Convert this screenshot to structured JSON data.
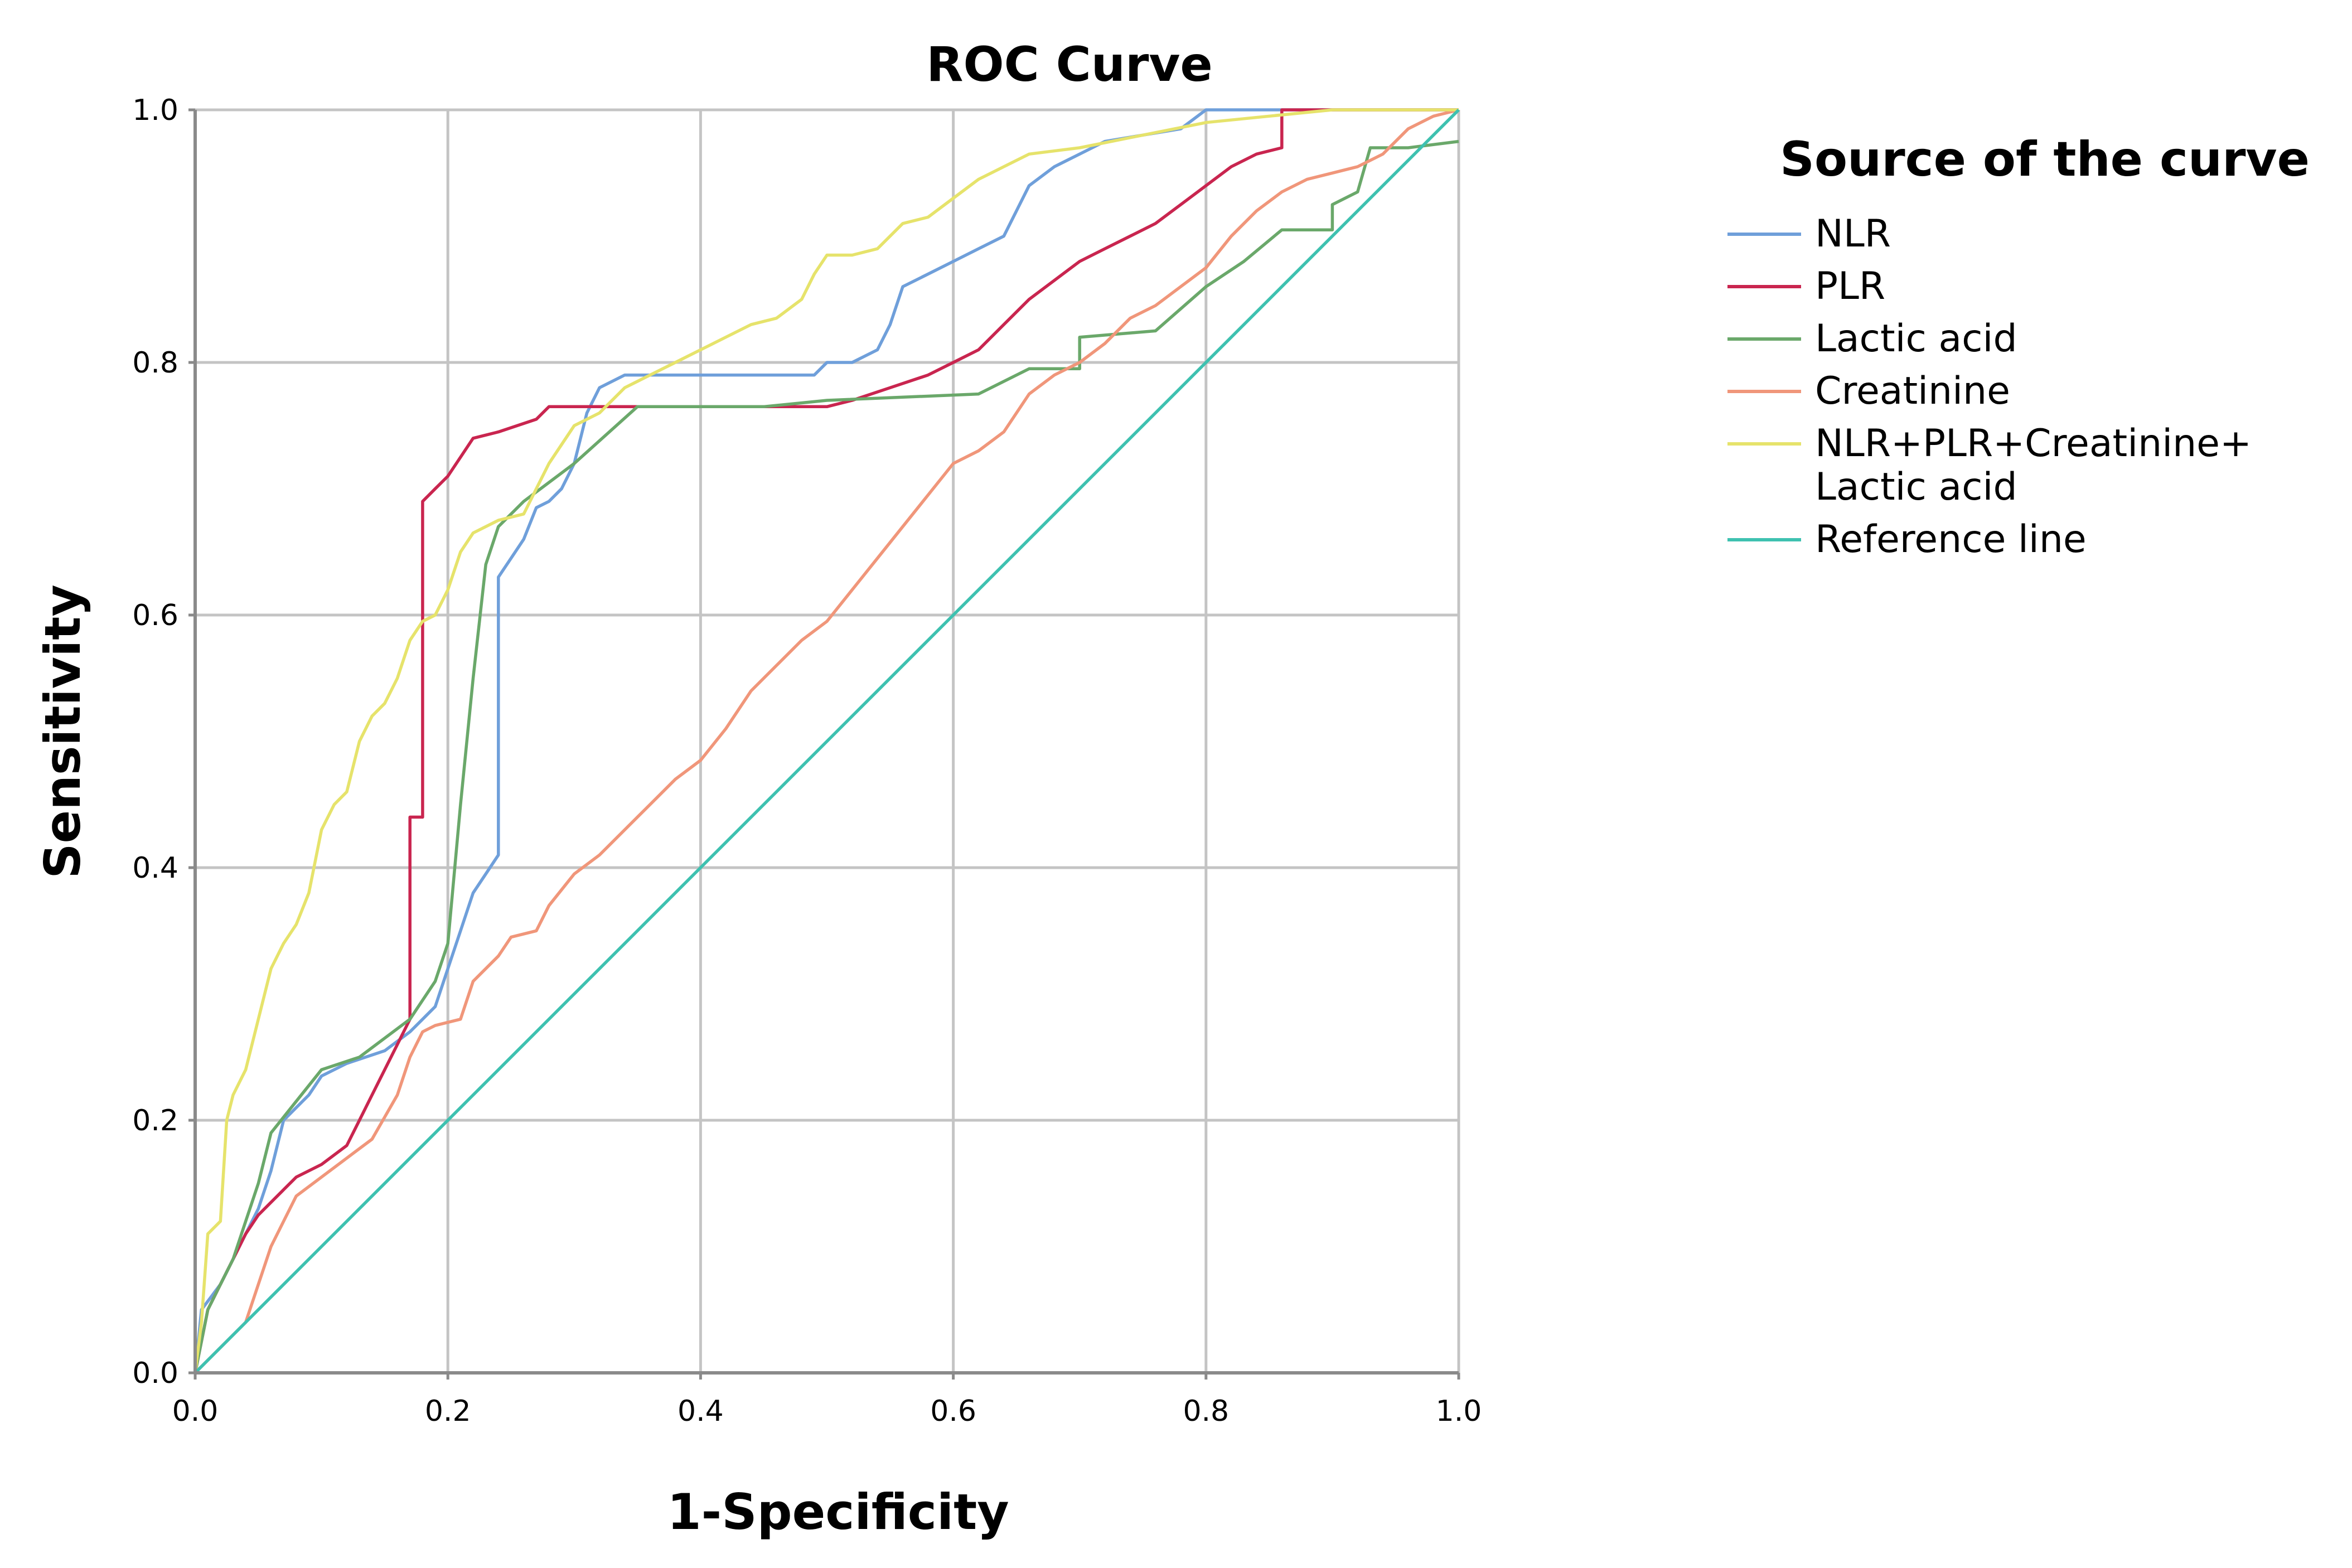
{
  "chart_data": {
    "type": "line",
    "title": "ROC Curve",
    "xlabel": "1-Specificity",
    "ylabel": "Sensitivity",
    "xlim": [
      0,
      1
    ],
    "ylim": [
      0,
      1
    ],
    "x_ticks": [
      "0.0",
      "0.2",
      "0.4",
      "0.6",
      "0.8",
      "1.0"
    ],
    "y_ticks": [
      "0.0",
      "0.2",
      "0.4",
      "0.6",
      "0.8",
      "1.0"
    ],
    "grid": true,
    "legend_title": "Source of the curve",
    "legend_position": "right",
    "series": [
      {
        "name": "NLR",
        "color": "#6f9fda",
        "points": [
          [
            0,
            0
          ],
          [
            0.005,
            0.05
          ],
          [
            0.02,
            0.07
          ],
          [
            0.03,
            0.09
          ],
          [
            0.04,
            0.11
          ],
          [
            0.05,
            0.13
          ],
          [
            0.06,
            0.16
          ],
          [
            0.07,
            0.2
          ],
          [
            0.08,
            0.21
          ],
          [
            0.09,
            0.22
          ],
          [
            0.1,
            0.235
          ],
          [
            0.12,
            0.245
          ],
          [
            0.15,
            0.255
          ],
          [
            0.17,
            0.27
          ],
          [
            0.18,
            0.28
          ],
          [
            0.19,
            0.29
          ],
          [
            0.2,
            0.32
          ],
          [
            0.21,
            0.35
          ],
          [
            0.22,
            0.38
          ],
          [
            0.23,
            0.395
          ],
          [
            0.24,
            0.41
          ],
          [
            0.24,
            0.63
          ],
          [
            0.25,
            0.645
          ],
          [
            0.26,
            0.66
          ],
          [
            0.27,
            0.685
          ],
          [
            0.28,
            0.69
          ],
          [
            0.29,
            0.7
          ],
          [
            0.3,
            0.72
          ],
          [
            0.31,
            0.76
          ],
          [
            0.32,
            0.78
          ],
          [
            0.34,
            0.79
          ],
          [
            0.45,
            0.79
          ],
          [
            0.49,
            0.79
          ],
          [
            0.5,
            0.8
          ],
          [
            0.52,
            0.8
          ],
          [
            0.54,
            0.81
          ],
          [
            0.55,
            0.83
          ],
          [
            0.56,
            0.86
          ],
          [
            0.58,
            0.87
          ],
          [
            0.6,
            0.88
          ],
          [
            0.62,
            0.89
          ],
          [
            0.64,
            0.9
          ],
          [
            0.65,
            0.92
          ],
          [
            0.66,
            0.94
          ],
          [
            0.68,
            0.955
          ],
          [
            0.7,
            0.965
          ],
          [
            0.72,
            0.975
          ],
          [
            0.75,
            0.98
          ],
          [
            0.78,
            0.985
          ],
          [
            0.8,
            1.0
          ],
          [
            1.0,
            1.0
          ]
        ]
      },
      {
        "name": "PLR",
        "color": "#c9254f",
        "points": [
          [
            0,
            0
          ],
          [
            0.01,
            0.05
          ],
          [
            0.02,
            0.07
          ],
          [
            0.03,
            0.09
          ],
          [
            0.04,
            0.11
          ],
          [
            0.05,
            0.125
          ],
          [
            0.06,
            0.135
          ],
          [
            0.07,
            0.145
          ],
          [
            0.08,
            0.155
          ],
          [
            0.1,
            0.165
          ],
          [
            0.12,
            0.18
          ],
          [
            0.13,
            0.2
          ],
          [
            0.14,
            0.22
          ],
          [
            0.15,
            0.24
          ],
          [
            0.16,
            0.26
          ],
          [
            0.17,
            0.28
          ],
          [
            0.17,
            0.44
          ],
          [
            0.18,
            0.44
          ],
          [
            0.18,
            0.69
          ],
          [
            0.19,
            0.7
          ],
          [
            0.2,
            0.71
          ],
          [
            0.21,
            0.725
          ],
          [
            0.22,
            0.74
          ],
          [
            0.24,
            0.745
          ],
          [
            0.27,
            0.755
          ],
          [
            0.28,
            0.765
          ],
          [
            0.35,
            0.765
          ],
          [
            0.5,
            0.765
          ],
          [
            0.52,
            0.77
          ],
          [
            0.55,
            0.78
          ],
          [
            0.58,
            0.79
          ],
          [
            0.6,
            0.8
          ],
          [
            0.62,
            0.81
          ],
          [
            0.64,
            0.83
          ],
          [
            0.66,
            0.85
          ],
          [
            0.68,
            0.865
          ],
          [
            0.7,
            0.88
          ],
          [
            0.72,
            0.89
          ],
          [
            0.74,
            0.9
          ],
          [
            0.76,
            0.91
          ],
          [
            0.78,
            0.925
          ],
          [
            0.8,
            0.94
          ],
          [
            0.82,
            0.955
          ],
          [
            0.84,
            0.965
          ],
          [
            0.86,
            0.97
          ],
          [
            0.86,
            1.0
          ],
          [
            1.0,
            1.0
          ]
        ]
      },
      {
        "name": "Lactic acid",
        "color": "#6aa86a",
        "points": [
          [
            0,
            0
          ],
          [
            0.01,
            0.05
          ],
          [
            0.02,
            0.07
          ],
          [
            0.03,
            0.09
          ],
          [
            0.04,
            0.12
          ],
          [
            0.05,
            0.15
          ],
          [
            0.06,
            0.19
          ],
          [
            0.08,
            0.215
          ],
          [
            0.1,
            0.24
          ],
          [
            0.13,
            0.25
          ],
          [
            0.15,
            0.265
          ],
          [
            0.17,
            0.28
          ],
          [
            0.19,
            0.31
          ],
          [
            0.2,
            0.34
          ],
          [
            0.21,
            0.45
          ],
          [
            0.22,
            0.55
          ],
          [
            0.23,
            0.64
          ],
          [
            0.24,
            0.67
          ],
          [
            0.26,
            0.69
          ],
          [
            0.3,
            0.72
          ],
          [
            0.35,
            0.765
          ],
          [
            0.45,
            0.765
          ],
          [
            0.5,
            0.77
          ],
          [
            0.62,
            0.775
          ],
          [
            0.66,
            0.795
          ],
          [
            0.7,
            0.795
          ],
          [
            0.7,
            0.82
          ],
          [
            0.76,
            0.825
          ],
          [
            0.8,
            0.86
          ],
          [
            0.83,
            0.88
          ],
          [
            0.86,
            0.905
          ],
          [
            0.9,
            0.905
          ],
          [
            0.9,
            0.925
          ],
          [
            0.92,
            0.935
          ],
          [
            0.93,
            0.97
          ],
          [
            0.96,
            0.97
          ],
          [
            1.0,
            0.975
          ]
        ]
      },
      {
        "name": "Creatinine",
        "color": "#f0967a",
        "points": [
          [
            0,
            0
          ],
          [
            0.02,
            0.02
          ],
          [
            0.04,
            0.04
          ],
          [
            0.05,
            0.07
          ],
          [
            0.06,
            0.1
          ],
          [
            0.07,
            0.12
          ],
          [
            0.08,
            0.14
          ],
          [
            0.1,
            0.155
          ],
          [
            0.12,
            0.17
          ],
          [
            0.14,
            0.185
          ],
          [
            0.16,
            0.22
          ],
          [
            0.17,
            0.25
          ],
          [
            0.18,
            0.27
          ],
          [
            0.19,
            0.275
          ],
          [
            0.21,
            0.28
          ],
          [
            0.22,
            0.31
          ],
          [
            0.24,
            0.33
          ],
          [
            0.25,
            0.345
          ],
          [
            0.27,
            0.35
          ],
          [
            0.28,
            0.37
          ],
          [
            0.3,
            0.395
          ],
          [
            0.32,
            0.41
          ],
          [
            0.34,
            0.43
          ],
          [
            0.36,
            0.45
          ],
          [
            0.38,
            0.47
          ],
          [
            0.4,
            0.485
          ],
          [
            0.42,
            0.51
          ],
          [
            0.44,
            0.54
          ],
          [
            0.46,
            0.56
          ],
          [
            0.48,
            0.58
          ],
          [
            0.5,
            0.595
          ],
          [
            0.52,
            0.62
          ],
          [
            0.54,
            0.645
          ],
          [
            0.56,
            0.67
          ],
          [
            0.58,
            0.695
          ],
          [
            0.6,
            0.72
          ],
          [
            0.62,
            0.73
          ],
          [
            0.64,
            0.745
          ],
          [
            0.65,
            0.76
          ],
          [
            0.66,
            0.775
          ],
          [
            0.68,
            0.79
          ],
          [
            0.7,
            0.8
          ],
          [
            0.72,
            0.815
          ],
          [
            0.74,
            0.835
          ],
          [
            0.76,
            0.845
          ],
          [
            0.78,
            0.86
          ],
          [
            0.8,
            0.875
          ],
          [
            0.82,
            0.9
          ],
          [
            0.84,
            0.92
          ],
          [
            0.86,
            0.935
          ],
          [
            0.88,
            0.945
          ],
          [
            0.9,
            0.95
          ],
          [
            0.92,
            0.955
          ],
          [
            0.94,
            0.965
          ],
          [
            0.96,
            0.985
          ],
          [
            0.98,
            0.995
          ],
          [
            1.0,
            1.0
          ]
        ]
      },
      {
        "name": "NLR+PLR+Creatinine+ Lactic acid",
        "label_lines": [
          "NLR+PLR+Creatinine+",
          "Lactic acid"
        ],
        "color": "#e6e36b",
        "points": [
          [
            0,
            0
          ],
          [
            0.005,
            0.04
          ],
          [
            0.01,
            0.11
          ],
          [
            0.02,
            0.12
          ],
          [
            0.025,
            0.2
          ],
          [
            0.03,
            0.22
          ],
          [
            0.04,
            0.24
          ],
          [
            0.05,
            0.28
          ],
          [
            0.06,
            0.32
          ],
          [
            0.07,
            0.34
          ],
          [
            0.08,
            0.355
          ],
          [
            0.09,
            0.38
          ],
          [
            0.1,
            0.43
          ],
          [
            0.11,
            0.45
          ],
          [
            0.12,
            0.46
          ],
          [
            0.13,
            0.5
          ],
          [
            0.14,
            0.52
          ],
          [
            0.15,
            0.53
          ],
          [
            0.16,
            0.55
          ],
          [
            0.17,
            0.58
          ],
          [
            0.18,
            0.595
          ],
          [
            0.19,
            0.6
          ],
          [
            0.2,
            0.62
          ],
          [
            0.21,
            0.65
          ],
          [
            0.22,
            0.665
          ],
          [
            0.24,
            0.675
          ],
          [
            0.26,
            0.68
          ],
          [
            0.27,
            0.7
          ],
          [
            0.28,
            0.72
          ],
          [
            0.3,
            0.75
          ],
          [
            0.32,
            0.76
          ],
          [
            0.34,
            0.78
          ],
          [
            0.36,
            0.79
          ],
          [
            0.38,
            0.8
          ],
          [
            0.4,
            0.81
          ],
          [
            0.42,
            0.82
          ],
          [
            0.44,
            0.83
          ],
          [
            0.46,
            0.835
          ],
          [
            0.48,
            0.85
          ],
          [
            0.49,
            0.87
          ],
          [
            0.5,
            0.885
          ],
          [
            0.52,
            0.885
          ],
          [
            0.54,
            0.89
          ],
          [
            0.56,
            0.91
          ],
          [
            0.58,
            0.915
          ],
          [
            0.6,
            0.93
          ],
          [
            0.62,
            0.945
          ],
          [
            0.64,
            0.955
          ],
          [
            0.66,
            0.965
          ],
          [
            0.7,
            0.97
          ],
          [
            0.75,
            0.98
          ],
          [
            0.8,
            0.99
          ],
          [
            0.85,
            0.995
          ],
          [
            0.9,
            1.0
          ],
          [
            1.0,
            1.0
          ]
        ]
      },
      {
        "name": "Reference line",
        "color": "#3ec1b0",
        "points": [
          [
            0,
            0
          ],
          [
            1,
            1
          ]
        ]
      }
    ]
  }
}
